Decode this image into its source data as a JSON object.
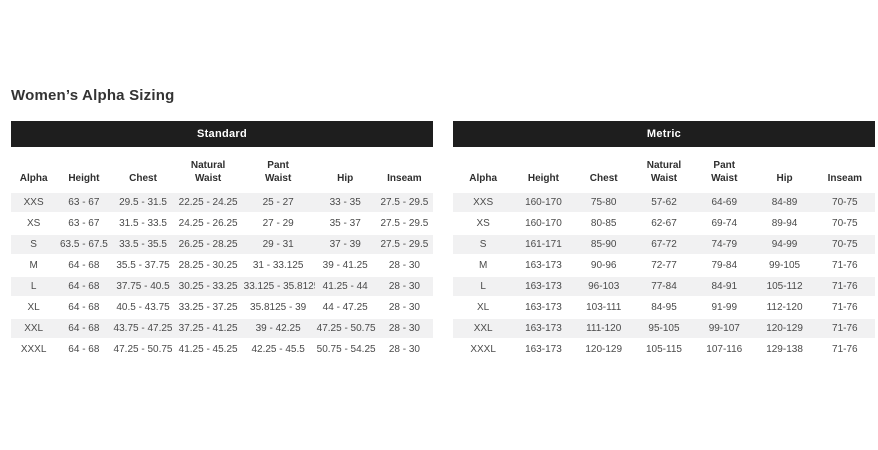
{
  "page_title": "Women’s Alpha Sizing",
  "colors": {
    "header_bar_bg": "#1e1e1e",
    "header_bar_text": "#ffffff",
    "row_alt_bg": "#f1f1f2",
    "title_text": "#333333",
    "cell_text": "#4a4a4a"
  },
  "tables": [
    {
      "id": "standard",
      "title": "Standard",
      "columns": [
        "Alpha",
        "Height",
        "Chest",
        "Natural\nWaist",
        "Pant\nWaist",
        "Hip",
        "Inseam"
      ],
      "rows": [
        [
          "XXS",
          "63 - 67",
          "29.5 - 31.5",
          "22.25 - 24.25",
          "25 - 27",
          "33 - 35",
          "27.5 - 29.5"
        ],
        [
          "XS",
          "63 - 67",
          "31.5 - 33.5",
          "24.25 - 26.25",
          "27 - 29",
          "35 - 37",
          "27.5 - 29.5"
        ],
        [
          "S",
          "63.5 - 67.5",
          "33.5 - 35.5",
          "26.25 - 28.25",
          "29 - 31",
          "37 - 39",
          "27.5 - 29.5"
        ],
        [
          "M",
          "64 - 68",
          "35.5 - 37.75",
          "28.25 - 30.25",
          "31 - 33.125",
          "39 - 41.25",
          "28 - 30"
        ],
        [
          "L",
          "64 - 68",
          "37.75 - 40.5",
          "30.25 - 33.25",
          "33.125 - 35.8125",
          "41.25 - 44",
          "28 - 30"
        ],
        [
          "XL",
          "64 - 68",
          "40.5 - 43.75",
          "33.25 - 37.25",
          "35.8125 - 39",
          "44 - 47.25",
          "28 - 30"
        ],
        [
          "XXL",
          "64 - 68",
          "43.75 - 47.25",
          "37.25 - 41.25",
          "39 - 42.25",
          "47.25 - 50.75",
          "28 - 30"
        ],
        [
          "XXXL",
          "64 - 68",
          "47.25 - 50.75",
          "41.25 - 45.25",
          "42.25 - 45.5",
          "50.75 - 54.25",
          "28 - 30"
        ]
      ]
    },
    {
      "id": "metric",
      "title": "Metric",
      "columns": [
        "Alpha",
        "Height",
        "Chest",
        "Natural\nWaist",
        "Pant\nWaist",
        "Hip",
        "Inseam"
      ],
      "rows": [
        [
          "XXS",
          "160-170",
          "75-80",
          "57-62",
          "64-69",
          "84-89",
          "70-75"
        ],
        [
          "XS",
          "160-170",
          "80-85",
          "62-67",
          "69-74",
          "89-94",
          "70-75"
        ],
        [
          "S",
          "161-171",
          "85-90",
          "67-72",
          "74-79",
          "94-99",
          "70-75"
        ],
        [
          "M",
          "163-173",
          "90-96",
          "72-77",
          "79-84",
          "99-105",
          "71-76"
        ],
        [
          "L",
          "163-173",
          "96-103",
          "77-84",
          "84-91",
          "105-112",
          "71-76"
        ],
        [
          "XL",
          "163-173",
          "103-111",
          "84-95",
          "91-99",
          "112-120",
          "71-76"
        ],
        [
          "XXL",
          "163-173",
          "111-120",
          "95-105",
          "99-107",
          "120-129",
          "71-76"
        ],
        [
          "XXXL",
          "163-173",
          "120-129",
          "105-115",
          "107-116",
          "129-138",
          "71-76"
        ]
      ]
    }
  ]
}
